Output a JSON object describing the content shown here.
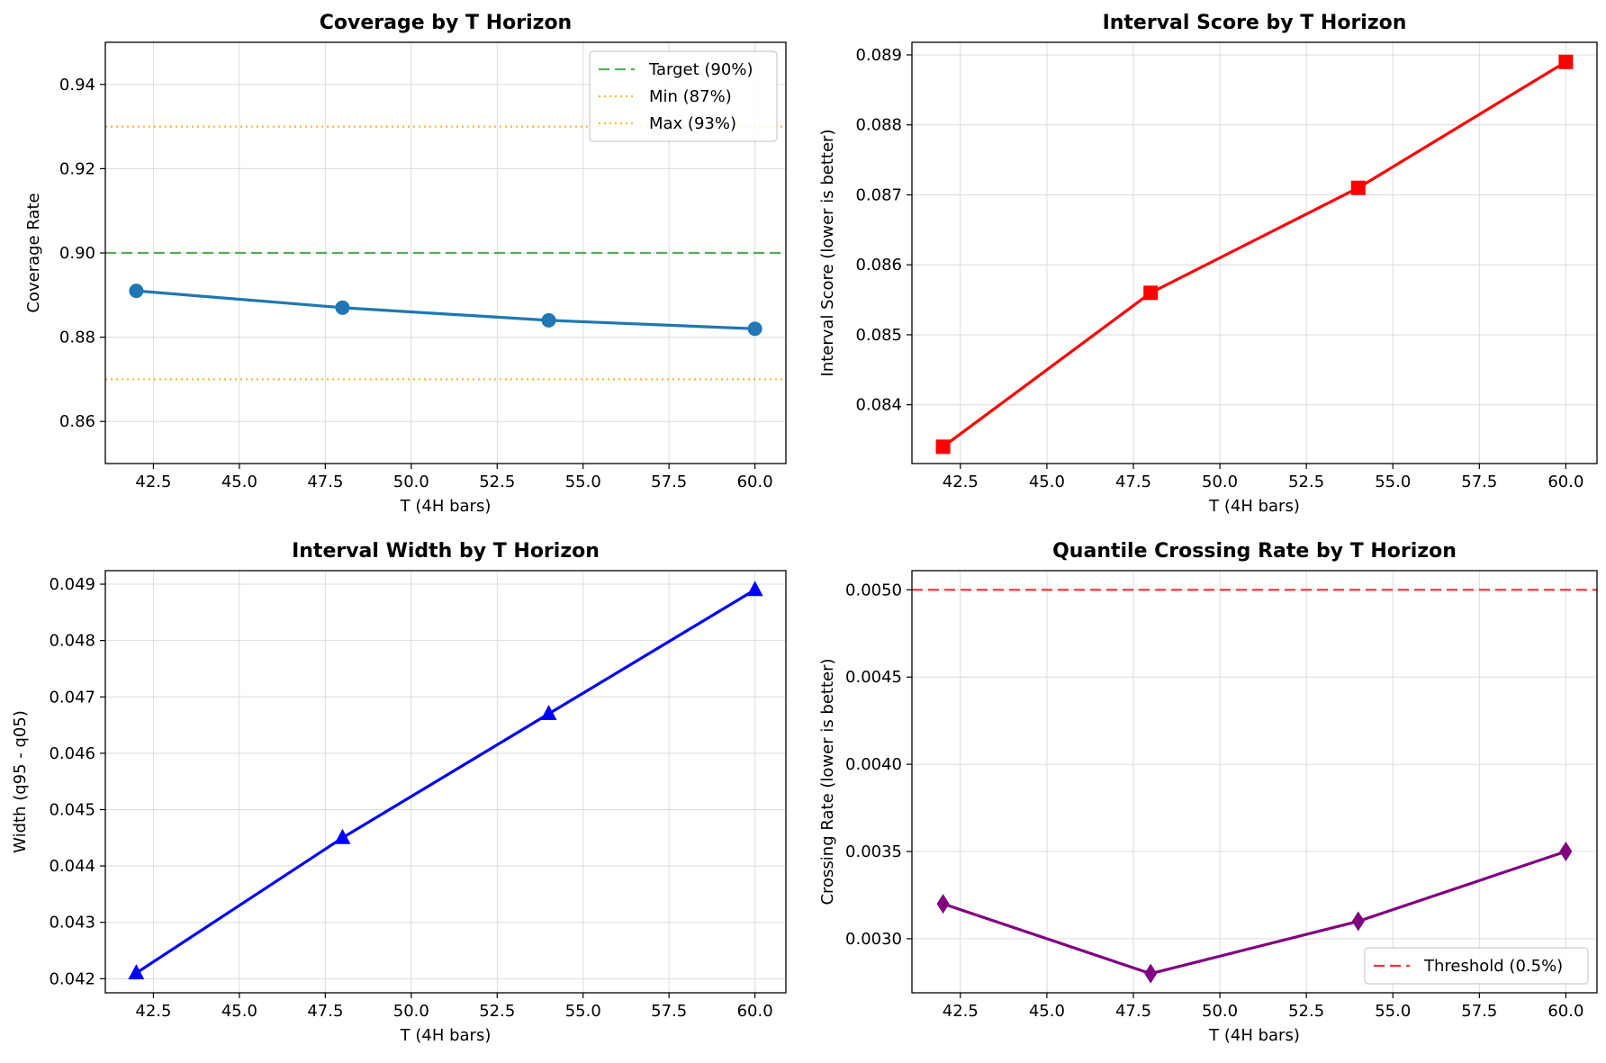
{
  "chart_data": [
    {
      "type": "line",
      "title": "Coverage by T Horizon",
      "xlabel": "T (4H bars)",
      "ylabel": "Coverage Rate",
      "xlim": [
        41.1,
        60.9
      ],
      "ylim": [
        0.85,
        0.95
      ],
      "xticks": [
        42.5,
        45.0,
        47.5,
        50.0,
        52.5,
        55.0,
        57.5,
        60.0
      ],
      "xtick_labels": [
        "42.5",
        "45.0",
        "47.5",
        "50.0",
        "52.5",
        "55.0",
        "57.5",
        "60.0"
      ],
      "yticks": [
        0.86,
        0.88,
        0.9,
        0.92,
        0.94
      ],
      "ytick_labels": [
        "0.86",
        "0.88",
        "0.90",
        "0.92",
        "0.94"
      ],
      "grid": true,
      "legend_position": "top-right",
      "series": [
        {
          "x": [
            42,
            48,
            54,
            60
          ],
          "values": [
            0.891,
            0.887,
            0.884,
            0.882
          ],
          "color": "#1f77b4",
          "marker": "circle"
        }
      ],
      "reference_lines": [
        {
          "name": "Target (90%)",
          "y": 0.9,
          "color": "#2ca02c",
          "style": "dashed"
        },
        {
          "name": "Min (87%)",
          "y": 0.87,
          "color": "#ffa500",
          "style": "dotted"
        },
        {
          "name": "Max (93%)",
          "y": 0.93,
          "color": "#ffa500",
          "style": "dotted"
        }
      ]
    },
    {
      "type": "line",
      "title": "Interval Score by T Horizon",
      "xlabel": "T (4H bars)",
      "ylabel": "Interval Score (lower is better)",
      "xlim": [
        41.1,
        60.9
      ],
      "ylim": [
        0.08316,
        0.08918
      ],
      "xticks": [
        42.5,
        45.0,
        47.5,
        50.0,
        52.5,
        55.0,
        57.5,
        60.0
      ],
      "xtick_labels": [
        "42.5",
        "45.0",
        "47.5",
        "50.0",
        "52.5",
        "55.0",
        "57.5",
        "60.0"
      ],
      "yticks": [
        0.084,
        0.085,
        0.086,
        0.087,
        0.088,
        0.089
      ],
      "ytick_labels": [
        "0.084",
        "0.085",
        "0.086",
        "0.087",
        "0.088",
        "0.089"
      ],
      "grid": true,
      "series": [
        {
          "x": [
            42,
            48,
            54,
            60
          ],
          "values": [
            0.0834,
            0.0856,
            0.0871,
            0.0889
          ],
          "color": "#ff0000",
          "marker": "square"
        }
      ]
    },
    {
      "type": "line",
      "title": "Interval Width by T Horizon",
      "xlabel": "T (4H bars)",
      "ylabel": "Width (q95 - q05)",
      "xlim": [
        41.1,
        60.9
      ],
      "ylim": [
        0.04175,
        0.04924
      ],
      "xticks": [
        42.5,
        45.0,
        47.5,
        50.0,
        52.5,
        55.0,
        57.5,
        60.0
      ],
      "xtick_labels": [
        "42.5",
        "45.0",
        "47.5",
        "50.0",
        "52.5",
        "55.0",
        "57.5",
        "60.0"
      ],
      "yticks": [
        0.042,
        0.043,
        0.044,
        0.045,
        0.046,
        0.047,
        0.048,
        0.049
      ],
      "ytick_labels": [
        "0.042",
        "0.043",
        "0.044",
        "0.045",
        "0.046",
        "0.047",
        "0.048",
        "0.049"
      ],
      "grid": true,
      "series": [
        {
          "x": [
            42,
            48,
            54,
            60
          ],
          "values": [
            0.0421,
            0.0445,
            0.0467,
            0.0489
          ],
          "color": "#0000ff",
          "marker": "triangle"
        }
      ]
    },
    {
      "type": "line",
      "title": "Quantile Crossing Rate by T Horizon",
      "xlabel": "T (4H bars)",
      "ylabel": "Crossing Rate (lower is better)",
      "xlim": [
        41.1,
        60.9
      ],
      "ylim": [
        0.00269,
        0.00511
      ],
      "xticks": [
        42.5,
        45.0,
        47.5,
        50.0,
        52.5,
        55.0,
        57.5,
        60.0
      ],
      "xtick_labels": [
        "42.5",
        "45.0",
        "47.5",
        "50.0",
        "52.5",
        "55.0",
        "57.5",
        "60.0"
      ],
      "yticks": [
        0.003,
        0.0035,
        0.004,
        0.0045,
        0.005
      ],
      "ytick_labels": [
        "0.0030",
        "0.0035",
        "0.0040",
        "0.0045",
        "0.0050"
      ],
      "grid": true,
      "legend_position": "bottom-right",
      "series": [
        {
          "x": [
            42,
            48,
            54,
            60
          ],
          "values": [
            0.0032,
            0.0028,
            0.0031,
            0.0035
          ],
          "color": "#800080",
          "marker": "diamond"
        }
      ],
      "reference_lines": [
        {
          "name": "Threshold (0.5%)",
          "y": 0.005,
          "color": "#ff0000",
          "style": "dashed"
        }
      ]
    }
  ]
}
